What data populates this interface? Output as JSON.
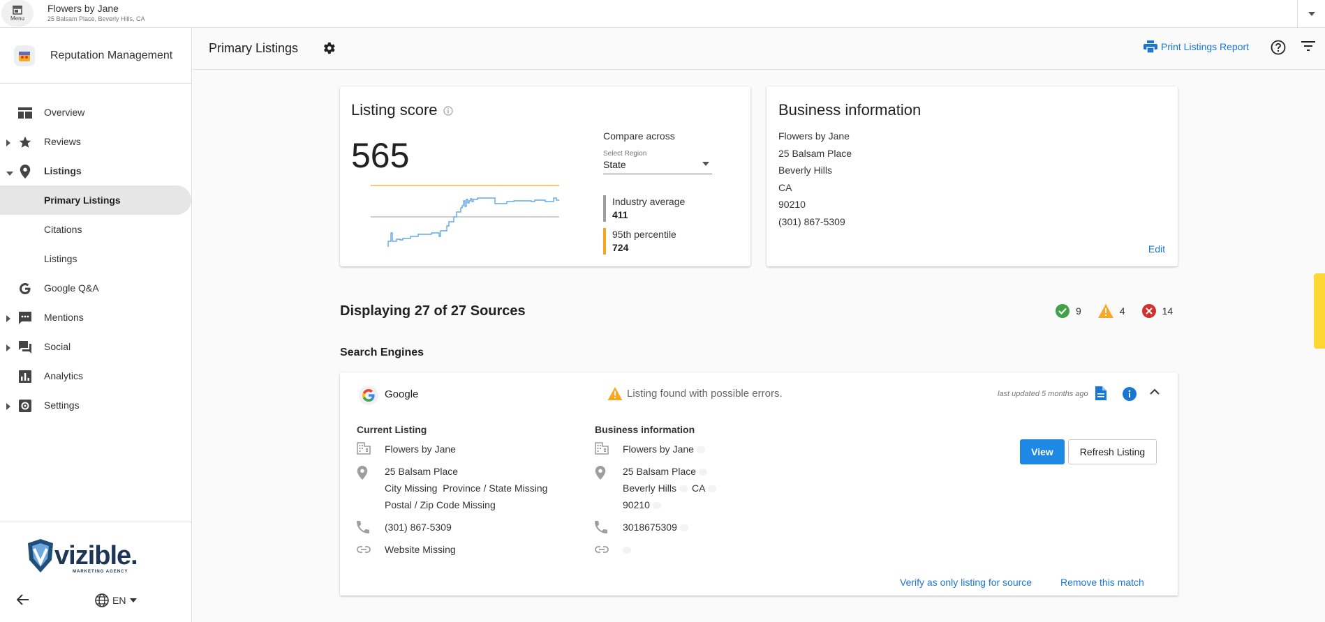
{
  "topbar": {
    "menu_label": "Menu",
    "business_name": "Flowers by Jane",
    "business_address": "25 Balsam Place, Beverly Hills, CA"
  },
  "sidebar": {
    "app_title": "Reputation Management",
    "items": [
      {
        "label": "Overview",
        "icon": "overview-icon"
      },
      {
        "label": "Reviews",
        "icon": "star-icon"
      },
      {
        "label": "Listings",
        "icon": "location-pin-icon"
      },
      {
        "label": "Primary Listings"
      },
      {
        "label": "Citations"
      },
      {
        "label": "Listings"
      },
      {
        "label": "Google Q&A",
        "icon": "google-g-icon"
      },
      {
        "label": "Mentions",
        "icon": "chat-bubble-icon"
      },
      {
        "label": "Social",
        "icon": "forum-icon"
      },
      {
        "label": "Analytics",
        "icon": "analytics-icon"
      },
      {
        "label": "Settings",
        "icon": "settings-icon"
      }
    ],
    "footer_logo": "vizible.",
    "footer_logo_sub": "MARKETING AGENCY",
    "language": "EN"
  },
  "header": {
    "title": "Primary Listings",
    "print_label": "Print Listings Report"
  },
  "score_card": {
    "title": "Listing score",
    "score": "565",
    "compare_label": "Compare across",
    "select_label": "Select Region",
    "select_value": "State",
    "industry_label": "Industry average",
    "industry_value": "411",
    "percentile_label": "95th percentile",
    "percentile_value": "724",
    "colors": {
      "line": "#64a8e8",
      "percentile": "#f5a623",
      "industry": "#9e9e9e"
    }
  },
  "info_card": {
    "title": "Business information",
    "lines": [
      "Flowers by Jane",
      "25 Balsam Place",
      "Beverly Hills",
      "CA",
      "90210",
      "(301) 867-5309"
    ],
    "edit_label": "Edit"
  },
  "sources": {
    "title": "Displaying 27 of 27 Sources",
    "counts": {
      "ok": "9",
      "warning": "4",
      "error": "14"
    },
    "section_title": "Search Engines",
    "google": {
      "name": "Google",
      "status": "Listing found with possible errors.",
      "updated": "last updated 5 months ago",
      "current_title": "Current Listing",
      "business_title": "Business information",
      "current": {
        "name": "Flowers by Jane",
        "address1": "25 Balsam Place",
        "address2": "City Missing  Province / State Missing",
        "address3": "Postal / Zip Code Missing",
        "phone": "(301) 867-5309",
        "website": "Website Missing"
      },
      "business": {
        "name": "Flowers by Jane",
        "address1": "25 Balsam Place",
        "city": "Beverly Hills",
        "state": "CA",
        "zip": "90210",
        "phone": "3018675309"
      },
      "view_label": "View",
      "refresh_label": "Refresh Listing",
      "verify_label": "Verify as only listing for source",
      "remove_label": "Remove this match"
    }
  }
}
